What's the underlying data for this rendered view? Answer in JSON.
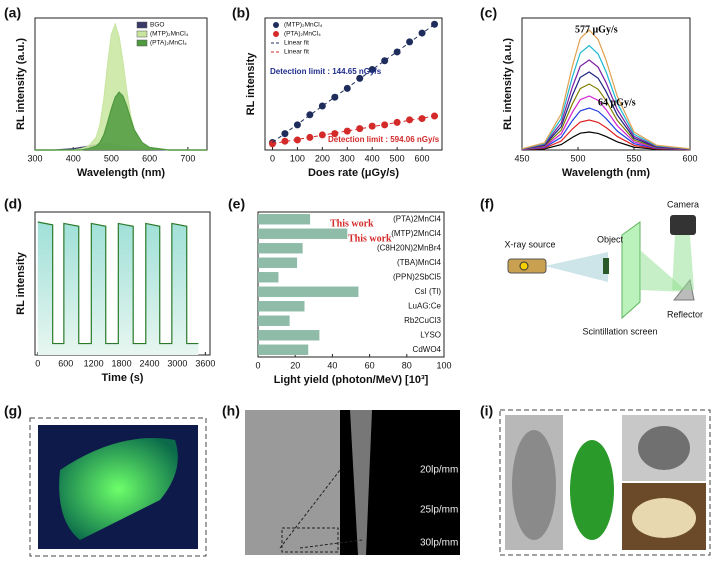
{
  "chart_data": [
    {
      "panel": "(a)",
      "type": "line",
      "fill": true,
      "xlabel": "Wavelength (nm)",
      "ylabel": "RL intensity (a.u.)",
      "x": [
        300,
        350,
        400,
        420,
        440,
        460,
        470,
        480,
        490,
        500,
        510,
        520,
        530,
        540,
        550,
        560,
        580,
        600,
        650,
        700,
        750
      ],
      "xlim": [
        300,
        750
      ],
      "xticks": [
        300,
        400,
        500,
        600,
        700
      ],
      "ylim": [
        0,
        1.05
      ],
      "legend": "upper right",
      "series": [
        {
          "name": "BGO",
          "color": "#3a3a6a",
          "values": [
            0,
            0,
            0.01,
            0.02,
            0.03,
            0.04,
            0.045,
            0.05,
            0.05,
            0.045,
            0.04,
            0.035,
            0.03,
            0.025,
            0.02,
            0.015,
            0.01,
            0.005,
            0,
            0,
            0
          ]
        },
        {
          "name": "(MTP)₂MnCl₄",
          "color": "#c8e6a0",
          "values": [
            0,
            0,
            0,
            0.01,
            0.03,
            0.1,
            0.2,
            0.4,
            0.68,
            0.92,
            1.0,
            0.9,
            0.7,
            0.47,
            0.28,
            0.15,
            0.05,
            0.02,
            0,
            0,
            0
          ]
        },
        {
          "name": "(PTA)₂MnCl₄",
          "color": "#4f9a3f",
          "values": [
            0,
            0,
            0,
            0,
            0.01,
            0.03,
            0.06,
            0.12,
            0.22,
            0.33,
            0.42,
            0.46,
            0.43,
            0.35,
            0.25,
            0.16,
            0.06,
            0.02,
            0,
            0,
            0
          ]
        }
      ]
    },
    {
      "panel": "(b)",
      "type": "scatter",
      "xlabel": "Does rate (μGy/s)",
      "ylabel": "RL intensity",
      "x": [
        0,
        50,
        100,
        150,
        200,
        250,
        300,
        350,
        400,
        450,
        500,
        550,
        600,
        650
      ],
      "xlim": [
        -30,
        680
      ],
      "xticks": [
        0,
        100,
        200,
        300,
        400,
        500,
        600
      ],
      "ylim": [
        0,
        1.05
      ],
      "legend": "upper left",
      "series": [
        {
          "name": "(MTP)₂MnCl₄",
          "color": "#1f2d5c",
          "values": [
            0.06,
            0.13,
            0.2,
            0.28,
            0.35,
            0.42,
            0.49,
            0.57,
            0.64,
            0.71,
            0.78,
            0.86,
            0.93,
            1.0
          ]
        },
        {
          "name": "(PTA)₂MnCl₄",
          "color": "#d42a2a",
          "values": [
            0.05,
            0.07,
            0.08,
            0.1,
            0.12,
            0.13,
            0.15,
            0.17,
            0.19,
            0.2,
            0.22,
            0.24,
            0.25,
            0.27
          ]
        },
        {
          "name": "Linear fit",
          "color": "#1f2d5c",
          "line": true,
          "x": [
            0,
            650
          ],
          "values": [
            0.06,
            1.0
          ]
        },
        {
          "name": "Linear fit",
          "color": "#d42a2a",
          "line": true,
          "x": [
            0,
            650
          ],
          "values": [
            0.05,
            0.27
          ]
        }
      ],
      "annotations": [
        {
          "text": "Detection limit : 144.65 nGy/s",
          "color": "#1f2d8c"
        },
        {
          "text": "Detection limit : 594.06 nGy/s",
          "color": "#d42a2a"
        }
      ]
    },
    {
      "panel": "(c)",
      "type": "line",
      "xlabel": "Wavelength (nm)",
      "ylabel": "RL intensity (a.u.)",
      "x": [
        450,
        470,
        485,
        495,
        502,
        510,
        518,
        525,
        535,
        550,
        570,
        600
      ],
      "xlim": [
        450,
        600
      ],
      "xticks": [
        450,
        500,
        550,
        600
      ],
      "ylim": [
        0,
        1.1
      ],
      "series": [
        {
          "color": "#000000",
          "values": [
            0.002,
            0.009,
            0.045,
            0.105,
            0.14,
            0.15,
            0.138,
            0.113,
            0.068,
            0.023,
            0.006,
            0.002
          ]
        },
        {
          "color": "#e02020",
          "values": [
            0.003,
            0.015,
            0.075,
            0.175,
            0.233,
            0.25,
            0.23,
            0.188,
            0.113,
            0.038,
            0.01,
            0.003
          ]
        },
        {
          "color": "#2040e0",
          "values": [
            0.004,
            0.021,
            0.105,
            0.245,
            0.326,
            0.35,
            0.322,
            0.263,
            0.158,
            0.053,
            0.014,
            0.004
          ]
        },
        {
          "color": "#d020d0",
          "values": [
            0.005,
            0.027,
            0.135,
            0.315,
            0.419,
            0.45,
            0.414,
            0.338,
            0.203,
            0.068,
            0.018,
            0.005
          ]
        },
        {
          "color": "#808000",
          "values": [
            0.006,
            0.033,
            0.165,
            0.385,
            0.512,
            0.55,
            0.506,
            0.413,
            0.248,
            0.083,
            0.022,
            0.006
          ]
        },
        {
          "color": "#1a237e",
          "values": [
            0.007,
            0.039,
            0.195,
            0.455,
            0.605,
            0.65,
            0.598,
            0.488,
            0.293,
            0.098,
            0.026,
            0.007
          ]
        },
        {
          "color": "#7b1fa2",
          "values": [
            0.008,
            0.045,
            0.225,
            0.525,
            0.698,
            0.75,
            0.69,
            0.563,
            0.338,
            0.113,
            0.03,
            0.008
          ]
        },
        {
          "color": "#20b8d0",
          "values": [
            0.009,
            0.052,
            0.261,
            0.609,
            0.809,
            0.87,
            0.8,
            0.653,
            0.392,
            0.131,
            0.035,
            0.009
          ]
        },
        {
          "color": "#e0a050",
          "values": [
            0.01,
            0.06,
            0.3,
            0.7,
            0.93,
            1.0,
            0.92,
            0.75,
            0.45,
            0.15,
            0.04,
            0.01
          ]
        }
      ],
      "annotations": [
        {
          "text": "577 μGy/s",
          "color": "#000000"
        },
        {
          "text": "64 μGy/s",
          "color": "#000000"
        }
      ]
    },
    {
      "panel": "(d)",
      "type": "line",
      "fill": true,
      "xlabel": "Time (s)",
      "ylabel": "RL intensity",
      "x": [
        0,
        320,
        320,
        560,
        560,
        880,
        880,
        1150,
        1150,
        1460,
        1460,
        1730,
        1730,
        2050,
        2050,
        2320,
        2320,
        2620,
        2620,
        2880,
        2880,
        3200,
        3200,
        3450
      ],
      "xlim": [
        -60,
        3700
      ],
      "xticks": [
        0,
        600,
        1200,
        1800,
        2400,
        3000,
        3600
      ],
      "ylim": [
        0,
        1
      ],
      "series": [
        {
          "color": "#2a7a2a",
          "values": [
            0.93,
            0.91,
            0.08,
            0.08,
            0.92,
            0.9,
            0.08,
            0.08,
            0.92,
            0.9,
            0.08,
            0.08,
            0.92,
            0.9,
            0.08,
            0.08,
            0.92,
            0.9,
            0.08,
            0.08,
            0.92,
            0.9,
            0.08,
            0.08
          ]
        }
      ]
    },
    {
      "panel": "(e)",
      "type": "bar",
      "orientation": "horizontal",
      "xlabel": "Light yield (photon/MeV) [10³]",
      "categories": [
        "(PTA)2MnCl4",
        "(MTP)2MnCl4",
        "(C8H20N)2MnBr4",
        "(TBA)MnCl4",
        "(PPN)2SbCl5",
        "CsI (Tl)",
        "LuAG:Ce",
        "Rb2CuCl3",
        "LYSO",
        "CdWO4"
      ],
      "values": [
        28,
        48,
        24,
        21,
        11,
        54,
        25,
        17,
        33,
        27
      ],
      "color": "#8fbca8",
      "xlim": [
        0,
        100
      ],
      "xticks": [
        0,
        20,
        40,
        60,
        80,
        100
      ],
      "annotations": [
        {
          "text": "This work",
          "color": "#d42a2a"
        },
        {
          "text": "This work",
          "color": "#d42a2a"
        }
      ]
    }
  ],
  "panels": {
    "f": {
      "label": "(f)",
      "texts": [
        "Camera",
        "X-ray source",
        "Object",
        "Scintillation screen",
        "Reflector"
      ]
    },
    "g": {
      "label": "(g)"
    },
    "h": {
      "label": "(h)",
      "texts": [
        "20lp/mm",
        "25lp/mm",
        "30lp/mm"
      ]
    },
    "i": {
      "label": "(i)"
    }
  }
}
